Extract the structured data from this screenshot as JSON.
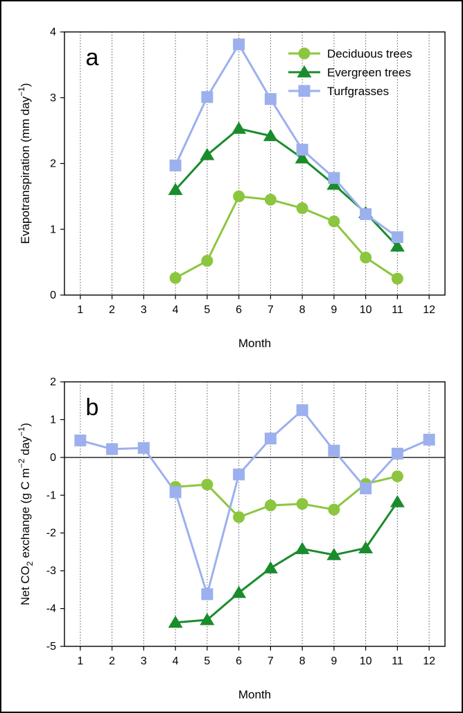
{
  "chart_data": [
    {
      "type": "line",
      "panel_label": "a",
      "xlabel": "Month",
      "ylabel": "Evapotranspiration (mm day⁻¹)",
      "ylabel_parts": {
        "main": "Evapotranspiration (mm day",
        "sup": "−1",
        "tail": ")"
      },
      "xlim": [
        0.5,
        12.5
      ],
      "ylim": [
        0,
        4
      ],
      "x_ticks": [
        1,
        2,
        3,
        4,
        5,
        6,
        7,
        8,
        9,
        10,
        11,
        12
      ],
      "y_ticks": [
        0,
        1,
        2,
        3,
        4
      ],
      "vertical_dotted_grid": true,
      "legend_position": "top-right",
      "series": [
        {
          "name": "Deciduous trees",
          "color": "#8cc63e",
          "marker": "circle",
          "x": [
            4,
            5,
            6,
            7,
            8,
            9,
            10,
            11
          ],
          "y": [
            0.26,
            0.52,
            1.5,
            1.45,
            1.32,
            1.12,
            0.57,
            0.25
          ]
        },
        {
          "name": "Evergreen trees",
          "color": "#1a8c2c",
          "marker": "triangle",
          "x": [
            4,
            5,
            6,
            7,
            8,
            9,
            10,
            11
          ],
          "y": [
            1.6,
            2.13,
            2.53,
            2.42,
            2.08,
            1.68,
            1.25,
            0.74
          ]
        },
        {
          "name": "Turfgrasses",
          "color": "#9cb0ee",
          "marker": "square",
          "x": [
            4,
            5,
            6,
            7,
            8,
            9,
            10,
            11
          ],
          "y": [
            1.97,
            3.01,
            3.81,
            2.98,
            2.21,
            1.78,
            1.23,
            0.88
          ]
        }
      ]
    },
    {
      "type": "line",
      "panel_label": "b",
      "xlabel": "Month",
      "ylabel": "Net CO₂ exchange (g C m⁻² day⁻¹)",
      "ylabel_parts": {
        "pre": "Net CO",
        "sub": "2",
        "mid": " exchange (g C m",
        "sup1": "−2",
        "mid2": " day",
        "sup2": "−1",
        "tail": ")"
      },
      "xlim": [
        0.5,
        12.5
      ],
      "ylim": [
        -5,
        2
      ],
      "x_ticks": [
        1,
        2,
        3,
        4,
        5,
        6,
        7,
        8,
        9,
        10,
        11,
        12
      ],
      "y_ticks": [
        -5,
        -4,
        -3,
        -2,
        -1,
        0,
        1,
        2
      ],
      "vertical_dotted_grid": true,
      "zero_line": true,
      "series": [
        {
          "name": "Deciduous trees",
          "color": "#8cc63e",
          "marker": "circle",
          "x": [
            4,
            5,
            6,
            7,
            8,
            9,
            10,
            11
          ],
          "y": [
            -0.78,
            -0.72,
            -1.58,
            -1.27,
            -1.23,
            -1.38,
            -0.7,
            -0.5
          ]
        },
        {
          "name": "Evergreen trees",
          "color": "#1a8c2c",
          "marker": "triangle",
          "x": [
            4,
            5,
            6,
            7,
            8,
            9,
            10,
            11
          ],
          "y": [
            -4.37,
            -4.3,
            -3.58,
            -2.93,
            -2.42,
            -2.58,
            -2.4,
            -1.18
          ]
        },
        {
          "name": "Turfgrasses",
          "color": "#9cb0ee",
          "marker": "square",
          "x": [
            1,
            2,
            3,
            4,
            5,
            6,
            7,
            8,
            9,
            10,
            11,
            12
          ],
          "y": [
            0.45,
            0.22,
            0.25,
            -0.92,
            -3.62,
            -0.45,
            0.5,
            1.25,
            0.18,
            -0.82,
            0.1,
            0.47
          ]
        }
      ]
    }
  ]
}
